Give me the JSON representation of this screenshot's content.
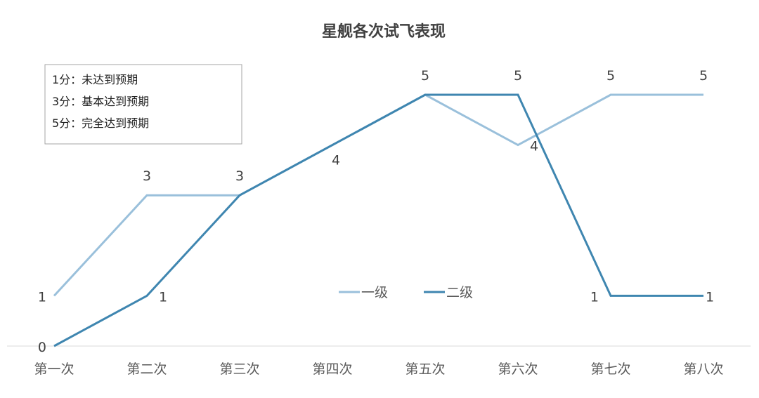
{
  "chart_data": {
    "type": "line",
    "title": "星舰各次试飞表现",
    "categories": [
      "第一次",
      "第二次",
      "第三次",
      "第四次",
      "第五次",
      "第六次",
      "第七次",
      "第八次"
    ],
    "ylim": [
      0,
      5
    ],
    "grid": false,
    "legend_position": "center",
    "series": [
      {
        "name": "一级",
        "color": "#9ac0db",
        "values": [
          1,
          3,
          3,
          4,
          5,
          4,
          5,
          5
        ]
      },
      {
        "name": "二级",
        "color": "#3f86b0",
        "values": [
          0,
          1,
          3,
          4,
          5,
          5,
          1,
          1
        ]
      }
    ],
    "notes": [
      "1分：未达到预期",
      "3分：基本达到预期",
      "5分：完全达到预期"
    ]
  }
}
